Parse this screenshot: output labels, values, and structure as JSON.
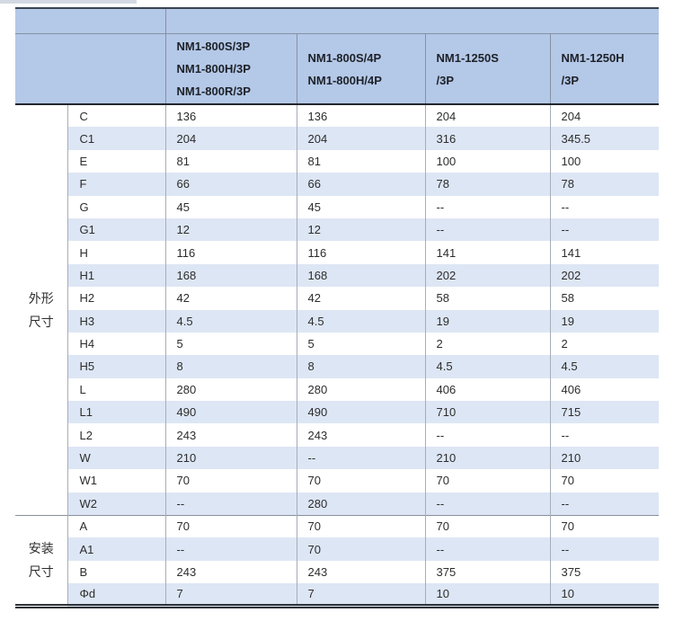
{
  "chart_data": {
    "type": "table",
    "title": "NM1 molded-case circuit breaker dimension table",
    "column_headers": [
      "NM1-800S/3P\nNM1-800H/3P\nNM1-800R/3P",
      "NM1-800S/4P\nNM1-800H/4P",
      "NM1-1250S\n/3P",
      "NM1-1250H\n/3P"
    ],
    "row_groups": [
      {
        "group_label": "外形\n尺寸",
        "rows": [
          [
            "C",
            "136",
            "136",
            "204",
            "204"
          ],
          [
            "C1",
            "204",
            "204",
            "316",
            "345.5"
          ],
          [
            "E",
            "81",
            "81",
            "100",
            "100"
          ],
          [
            "F",
            "66",
            "66",
            "78",
            "78"
          ],
          [
            "G",
            "45",
            "45",
            "--",
            "--"
          ],
          [
            "G1",
            "12",
            "12",
            "--",
            "--"
          ],
          [
            "H",
            "116",
            "116",
            "141",
            "141"
          ],
          [
            "H1",
            "168",
            "168",
            "202",
            "202"
          ],
          [
            "H2",
            "42",
            "42",
            "58",
            "58"
          ],
          [
            "H3",
            "4.5",
            "4.5",
            "19",
            "19"
          ],
          [
            "H4",
            "5",
            "5",
            "2",
            "2"
          ],
          [
            "H5",
            "8",
            "8",
            "4.5",
            "4.5"
          ],
          [
            "L",
            "280",
            "280",
            "406",
            "406"
          ],
          [
            "L1",
            "490",
            "490",
            "710",
            "715"
          ],
          [
            "L2",
            "243",
            "243",
            "--",
            "--"
          ],
          [
            "W",
            "210",
            "--",
            "210",
            "210"
          ],
          [
            "W1",
            "70",
            "70",
            "70",
            "70"
          ],
          [
            "W2",
            "--",
            "280",
            "--",
            "--"
          ]
        ]
      },
      {
        "group_label": "安装\n尺寸",
        "rows": [
          [
            "A",
            "70",
            "70",
            "70",
            "70"
          ],
          [
            "A1",
            "--",
            "70",
            "--",
            "--"
          ],
          [
            "B",
            "243",
            "243",
            "375",
            "375"
          ],
          [
            "Φd",
            "7",
            "7",
            "10",
            "10"
          ]
        ]
      }
    ],
    "layout": {
      "grid": "vertical column dividers only, striped rows",
      "stripe_pattern": "alternating white / light blue starting white"
    }
  },
  "colors": {
    "header_bg": "#b4c8e8",
    "stripe_bg": "#dde6f4",
    "row_bg": "#ffffff",
    "dark_rule": "#22262c",
    "grid_line": "#a6adb8",
    "text": "#2d2d2d"
  }
}
